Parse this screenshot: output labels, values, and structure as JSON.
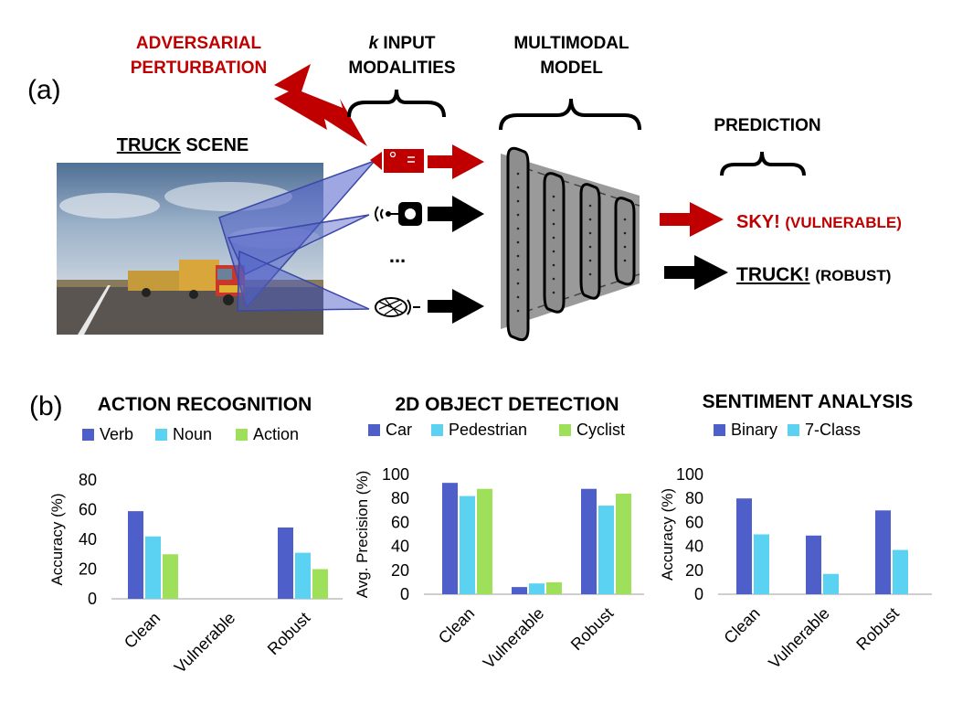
{
  "panel_a": {
    "tag": "(a)",
    "perturbation": {
      "line1": "ADVERSARIAL",
      "line2": "PERTURBATION"
    },
    "modalities": {
      "k": "k",
      "line1_rest": " INPUT",
      "line2": "MODALITIES",
      "ellipsis": "..."
    },
    "model": {
      "line1": "MULTIMODAL",
      "line2": "MODEL"
    },
    "scene": {
      "underlined": "TRUCK",
      "rest": " SCENE"
    },
    "prediction_header": "PREDICTION",
    "pred_vulnerable": {
      "main": "SKY!",
      "sub": "(VULNERABLE)"
    },
    "pred_robust": {
      "main": "TRUCK!",
      "sub": "(ROBUST)"
    },
    "colors": {
      "red": "#c00000",
      "blue_beam": "#4f5fc8",
      "model_gray": "#9a9a9a"
    },
    "icons": [
      "camera-icon",
      "audio-sensor-icon",
      "microphone-icon"
    ]
  },
  "panel_b": {
    "tag": "(b)",
    "colors": {
      "s1": "#4e5fc9",
      "s2": "#5bd2f2",
      "s3": "#9fe05a"
    }
  },
  "chart_data": [
    {
      "type": "bar",
      "title": "ACTION RECOGNITION",
      "ylabel": "Accuracy (%)",
      "ylim": [
        0,
        80
      ],
      "yticks": [
        0,
        20,
        40,
        60,
        80
      ],
      "categories": [
        "Clean",
        "Vulnerable",
        "Robust"
      ],
      "series": [
        {
          "name": "Verb",
          "color": "#4e5fc9",
          "values": [
            59,
            0,
            48
          ]
        },
        {
          "name": "Noun",
          "color": "#5bd2f2",
          "values": [
            42,
            0,
            31
          ]
        },
        {
          "name": "Action",
          "color": "#9fe05a",
          "values": [
            30,
            0,
            20
          ]
        }
      ],
      "legend": "top"
    },
    {
      "type": "bar",
      "title": "2D OBJECT DETECTION",
      "ylabel": "Avg. Precision (%)",
      "ylim": [
        0,
        100
      ],
      "yticks": [
        0,
        20,
        40,
        60,
        80,
        100
      ],
      "categories": [
        "Clean",
        "Vulnerable",
        "Robust"
      ],
      "series": [
        {
          "name": "Car",
          "color": "#4e5fc9",
          "values": [
            93,
            6,
            88
          ]
        },
        {
          "name": "Pedestrian",
          "color": "#5bd2f2",
          "values": [
            82,
            9,
            74
          ]
        },
        {
          "name": "Cyclist",
          "color": "#9fe05a",
          "values": [
            88,
            10,
            84
          ]
        }
      ],
      "legend": "top"
    },
    {
      "type": "bar",
      "title": "SENTIMENT ANALYSIS",
      "ylabel": "Accuracy (%)",
      "ylim": [
        0,
        100
      ],
      "yticks": [
        0,
        20,
        40,
        60,
        80,
        100
      ],
      "categories": [
        "Clean",
        "Vulnerable",
        "Robust"
      ],
      "series": [
        {
          "name": "Binary",
          "color": "#4e5fc9",
          "values": [
            80,
            49,
            70
          ]
        },
        {
          "name": "7-Class",
          "color": "#5bd2f2",
          "values": [
            50,
            17,
            37
          ]
        }
      ],
      "legend": "top"
    }
  ]
}
